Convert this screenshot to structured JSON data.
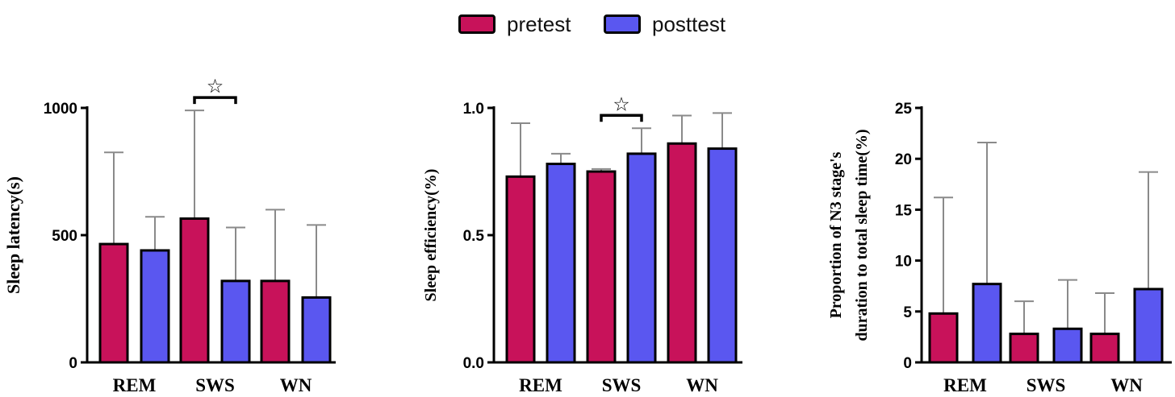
{
  "legend": {
    "items": [
      {
        "label": "pretest",
        "color": "#c8125a"
      },
      {
        "label": "posttest",
        "color": "#5a57f0"
      }
    ]
  },
  "chart_data": [
    {
      "type": "bar",
      "categories": [
        "REM",
        "SWS",
        "WN"
      ],
      "ylabel": "Sleep latency(s)",
      "ylim": [
        0,
        1000
      ],
      "yticks": [
        0,
        500,
        1000
      ],
      "ytick_labels": [
        "0",
        "500",
        "1000"
      ],
      "series": [
        {
          "name": "pretest",
          "values": [
            465,
            565,
            320
          ],
          "errors": [
            360,
            425,
            280
          ]
        },
        {
          "name": "posttest",
          "values": [
            440,
            320,
            255
          ],
          "errors": [
            132,
            210,
            285
          ]
        }
      ],
      "significance": [
        {
          "category": "SWS",
          "symbol": "☆"
        }
      ]
    },
    {
      "type": "bar",
      "categories": [
        "REM",
        "SWS",
        "WN"
      ],
      "ylabel": "Sleep efficiency(%)",
      "ylim": [
        0,
        1.0
      ],
      "yticks": [
        0,
        0.5,
        1.0
      ],
      "ytick_labels": [
        "0.0",
        "0.5",
        "1.0"
      ],
      "series": [
        {
          "name": "pretest",
          "values": [
            0.73,
            0.75,
            0.86
          ],
          "errors": [
            0.21,
            0.01,
            0.11
          ]
        },
        {
          "name": "posttest",
          "values": [
            0.78,
            0.82,
            0.84
          ],
          "errors": [
            0.04,
            0.1,
            0.14
          ]
        }
      ],
      "significance": [
        {
          "category": "SWS",
          "symbol": "☆"
        }
      ]
    },
    {
      "type": "bar",
      "categories": [
        "REM",
        "SWS",
        "WN"
      ],
      "ylabel": "Proportion of N3 stage's duration to total sleep time(%)",
      "ylabel_lines": [
        "Proportion of N3 stage's",
        "duration to total sleep time(%)"
      ],
      "ylim": [
        0,
        25
      ],
      "yticks": [
        0,
        5,
        10,
        15,
        20,
        25
      ],
      "ytick_labels": [
        "0",
        "5",
        "10",
        "15",
        "20",
        "25"
      ],
      "series": [
        {
          "name": "pretest",
          "values": [
            4.8,
            2.8,
            2.8
          ],
          "errors": [
            11.4,
            3.2,
            4.0
          ]
        },
        {
          "name": "posttest",
          "values": [
            7.7,
            3.3,
            7.2
          ],
          "errors": [
            13.9,
            4.8,
            11.5
          ]
        }
      ],
      "significance": []
    }
  ]
}
